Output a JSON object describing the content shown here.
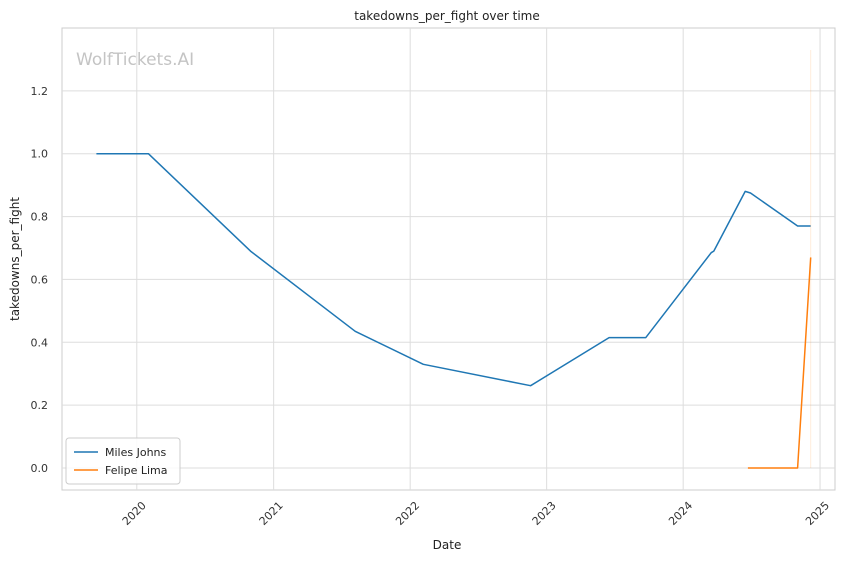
{
  "chart_data": {
    "type": "line",
    "title": "takedowns_per_fight over time",
    "xlabel": "Date",
    "ylabel": "takedowns_per_fight",
    "watermark": "WolfTickets.AI",
    "xlim": [
      "2019-06-15",
      "2025-02-10"
    ],
    "ylim": [
      -0.07,
      1.4
    ],
    "x_ticks": [
      "2020",
      "2021",
      "2022",
      "2023",
      "2024",
      "2025"
    ],
    "y_ticks": [
      "0.0",
      "0.2",
      "0.4",
      "0.6",
      "0.8",
      "1.0",
      "1.2"
    ],
    "grid": true,
    "legend_position": "lower-left",
    "series": [
      {
        "name": "Miles Johns",
        "color": "#1f77b4",
        "points": [
          [
            "2019-09-15",
            1.0
          ],
          [
            "2020-02-01",
            1.0
          ],
          [
            "2020-10-31",
            0.69
          ],
          [
            "2021-08-07",
            0.435
          ],
          [
            "2022-02-05",
            0.33
          ],
          [
            "2022-11-19",
            0.262
          ],
          [
            "2023-06-17",
            0.415
          ],
          [
            "2023-09-23",
            0.415
          ],
          [
            "2024-03-16",
            0.685
          ],
          [
            "2024-03-23",
            0.69
          ],
          [
            "2024-06-15",
            0.88
          ],
          [
            "2024-06-29",
            0.875
          ],
          [
            "2024-11-02",
            0.77
          ],
          [
            "2024-12-07",
            0.77
          ]
        ]
      },
      {
        "name": "Felipe Lima",
        "color": "#ff7f0e",
        "points": [
          [
            "2024-06-22",
            0.0
          ],
          [
            "2024-11-02",
            0.0
          ],
          [
            "2024-12-07",
            0.67
          ]
        ]
      }
    ]
  }
}
